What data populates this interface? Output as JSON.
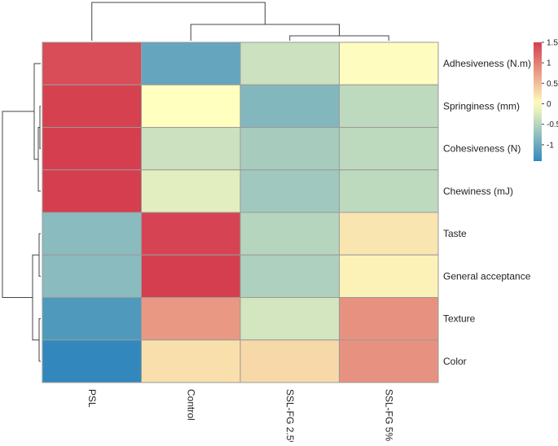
{
  "chart_data": {
    "type": "heatmap",
    "title": "",
    "columns": [
      "PSL",
      "Control",
      "SSL-FG 2.5%",
      "SSL-FG 5%"
    ],
    "rows": [
      "Adhesiveness (N.m)",
      "Springiness (mm)",
      "Cohesiveness (N)",
      "Chewiness (mJ)",
      "Taste",
      "General acceptance",
      "Texture",
      "Color"
    ],
    "values": [
      [
        1.38,
        -1.05,
        -0.35,
        0.02
      ],
      [
        1.48,
        0.0,
        -0.85,
        -0.45
      ],
      [
        1.5,
        -0.35,
        -0.6,
        -0.45
      ],
      [
        1.5,
        -0.2,
        -0.65,
        -0.45
      ],
      [
        -0.8,
        1.45,
        -0.5,
        0.2
      ],
      [
        -0.8,
        1.5,
        -0.55,
        0.1
      ],
      [
        -1.2,
        0.8,
        -0.3,
        0.85
      ],
      [
        -1.4,
        0.25,
        0.3,
        0.85
      ]
    ],
    "color_scale": {
      "min": -1.4,
      "max": 1.5,
      "low_color": "#3288bd",
      "mid_color": "#ffffbf",
      "high_color": "#d53e4f",
      "ticks": [
        1.5,
        1,
        0.5,
        0,
        -0.5,
        -1
      ],
      "tick_labels": [
        "1.5",
        "1",
        "0.5",
        "0",
        "-0.5",
        "-1"
      ]
    },
    "dendrogram_columns": "PSL splits first; Control then joins the cluster of SSL-FG 2.5% and SSL-FG 5%",
    "dendrogram_rows": "Adhesiveness, Springiness, Cohesiveness, Chewiness cluster together; Taste + General acceptance and Texture + Color form the second cluster"
  }
}
